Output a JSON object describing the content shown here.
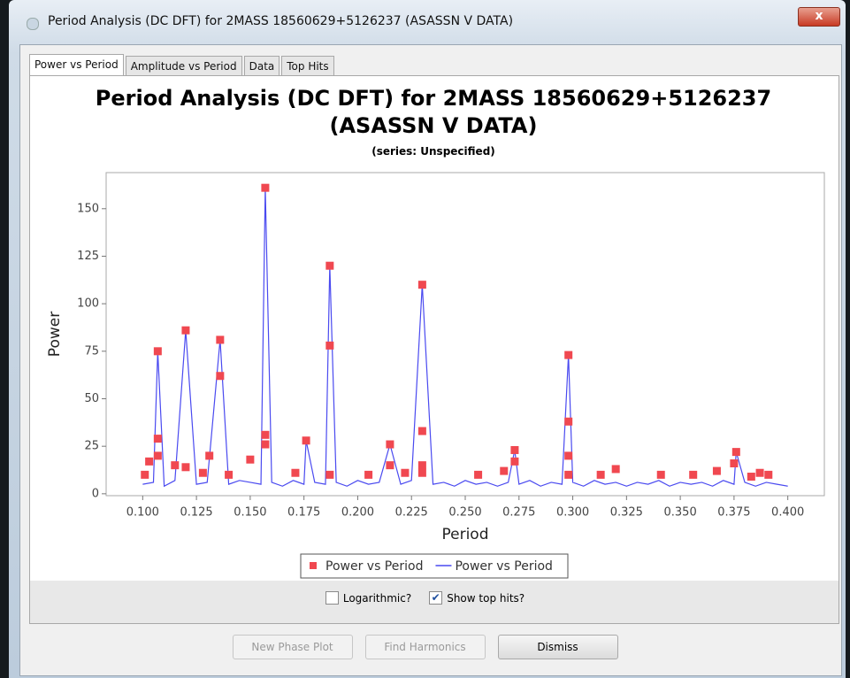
{
  "window": {
    "title": "Period Analysis (DC DFT) for 2MASS 18560629+5126237 (ASASSN V DATA)",
    "close": "x"
  },
  "tabs": {
    "items": [
      "Power vs Period",
      "Amplitude vs Period",
      "Data",
      "Top Hits"
    ],
    "selected": 0
  },
  "chart_data": {
    "type": "line",
    "title": "Period Analysis (DC DFT) for 2MASS 18560629+5126237 (ASASSN V DATA)",
    "subtitle": "(series: Unspecified)",
    "xlabel": "Period",
    "ylabel": "Power",
    "xlim": [
      0.083,
      0.417
    ],
    "ylim": [
      -1,
      169
    ],
    "xticks": [
      {
        "value": 0.1,
        "label": "0.100"
      },
      {
        "value": 0.125,
        "label": "0.125"
      },
      {
        "value": 0.15,
        "label": "0.150"
      },
      {
        "value": 0.175,
        "label": "0.175"
      },
      {
        "value": 0.2,
        "label": "0.200"
      },
      {
        "value": 0.225,
        "label": "0.225"
      },
      {
        "value": 0.25,
        "label": "0.250"
      },
      {
        "value": 0.275,
        "label": "0.275"
      },
      {
        "value": 0.3,
        "label": "0.300"
      },
      {
        "value": 0.325,
        "label": "0.325"
      },
      {
        "value": 0.35,
        "label": "0.350"
      },
      {
        "value": 0.375,
        "label": "0.375"
      },
      {
        "value": 0.4,
        "label": "0.400"
      }
    ],
    "yticks": [
      0,
      25,
      50,
      75,
      100,
      125,
      150
    ],
    "grid": false,
    "legend": "bottom",
    "series": [
      {
        "name": "Power vs Period",
        "color": "#f04850",
        "mode": "markers",
        "x": [
          0.157,
          0.187,
          0.23,
          0.12,
          0.136,
          0.107,
          0.298,
          0.187,
          0.136,
          0.298,
          0.23,
          0.157,
          0.107,
          0.176,
          0.157,
          0.215,
          0.273,
          0.376,
          0.107,
          0.131,
          0.298,
          0.15,
          0.103,
          0.273,
          0.375,
          0.115,
          0.215,
          0.23,
          0.12,
          0.32,
          0.367,
          0.268,
          0.101,
          0.14,
          0.187,
          0.205,
          0.256,
          0.341,
          0.356,
          0.391,
          0.387,
          0.313,
          0.171,
          0.222,
          0.298,
          0.383,
          0.128,
          0.23
        ],
        "values": [
          161,
          120,
          110,
          86,
          81,
          75,
          73,
          78,
          62,
          38,
          33,
          31,
          29,
          28,
          26,
          26,
          23,
          22,
          20,
          20,
          20,
          18,
          17,
          17,
          16,
          15,
          15,
          15,
          14,
          13,
          12,
          12,
          10,
          10,
          10,
          10,
          10,
          10,
          10,
          10,
          11,
          10,
          11,
          11,
          10,
          9,
          11,
          11
        ]
      },
      {
        "name": "Power vs Period",
        "color": "#4a4af0",
        "mode": "line",
        "x": [
          0.1,
          0.105,
          0.107,
          0.11,
          0.115,
          0.12,
          0.125,
          0.13,
          0.136,
          0.14,
          0.145,
          0.15,
          0.155,
          0.157,
          0.16,
          0.165,
          0.17,
          0.175,
          0.176,
          0.18,
          0.185,
          0.187,
          0.19,
          0.195,
          0.2,
          0.205,
          0.21,
          0.215,
          0.22,
          0.225,
          0.23,
          0.235,
          0.24,
          0.245,
          0.25,
          0.255,
          0.26,
          0.265,
          0.27,
          0.273,
          0.275,
          0.28,
          0.285,
          0.29,
          0.295,
          0.298,
          0.3,
          0.305,
          0.31,
          0.315,
          0.32,
          0.325,
          0.33,
          0.335,
          0.34,
          0.345,
          0.35,
          0.355,
          0.36,
          0.365,
          0.37,
          0.375,
          0.376,
          0.38,
          0.385,
          0.39,
          0.395,
          0.4
        ],
        "values": [
          5,
          6,
          75,
          4,
          7,
          86,
          5,
          6,
          81,
          5,
          7,
          6,
          5,
          161,
          6,
          4,
          7,
          5,
          28,
          6,
          5,
          120,
          6,
          4,
          7,
          5,
          6,
          26,
          5,
          7,
          110,
          5,
          6,
          4,
          7,
          5,
          6,
          4,
          6,
          23,
          5,
          7,
          4,
          6,
          5,
          73,
          6,
          4,
          7,
          5,
          6,
          4,
          6,
          5,
          7,
          4,
          6,
          5,
          6,
          4,
          7,
          5,
          22,
          6,
          4,
          6,
          5,
          4
        ]
      }
    ]
  },
  "checkboxes": [
    {
      "label": "Logarithmic?",
      "checked": false
    },
    {
      "label": "Show top hits?",
      "checked": true
    }
  ],
  "buttons": [
    {
      "label": "New Phase Plot",
      "enabled": false
    },
    {
      "label": "Find Harmonics",
      "enabled": false
    },
    {
      "label": "Dismiss",
      "enabled": true
    }
  ]
}
